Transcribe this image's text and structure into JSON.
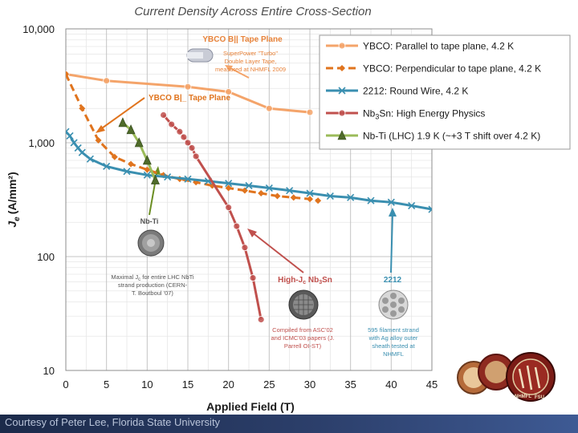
{
  "footer": {
    "credit": "Courtesy of Peter Lee, Florida State University"
  },
  "chart_data": {
    "type": "line",
    "title": "Current Density Across Entire Cross-Section",
    "xlabel": "Applied Field (T)",
    "ylabel_main": "J",
    "ylabel_sub": "e",
    "ylabel_units": "(A/mm²)",
    "xlim": [
      0,
      45
    ],
    "ylim": [
      10,
      10000
    ],
    "yscale": "log",
    "x_ticks": [
      "0",
      "5",
      "10",
      "15",
      "20",
      "25",
      "30",
      "35",
      "40",
      "45"
    ],
    "y_ticks": [
      "10",
      "100",
      "1,000",
      "10,000"
    ],
    "grid": true,
    "legend_position": "top-right",
    "series": [
      {
        "name": "YBCO: Parallel to tape plane, 4.2 K",
        "color": "#f4a46a",
        "marker": "circle",
        "dash": "solid",
        "x": [
          0,
          5,
          15,
          20,
          25,
          30
        ],
        "y": [
          4000,
          3500,
          3100,
          2800,
          2000,
          1850
        ]
      },
      {
        "name": "YBCO: Perpendicular to tape plane, 4.2 K",
        "color": "#e0741e",
        "marker": "diamond",
        "dash": "dash",
        "x": [
          0,
          2,
          4,
          6,
          8,
          10,
          12,
          14,
          16,
          18,
          20,
          22,
          24,
          26,
          28,
          30,
          31
        ],
        "y": [
          4000,
          2000,
          1050,
          750,
          650,
          580,
          520,
          480,
          450,
          420,
          400,
          380,
          360,
          340,
          330,
          320,
          310
        ]
      },
      {
        "name": "2212: Round Wire, 4.2 K",
        "color": "#3a8fb0",
        "marker": "x",
        "dash": "solid",
        "x": [
          0,
          0.5,
          1,
          1.5,
          2,
          3,
          5,
          7.5,
          10,
          12.5,
          15,
          17.5,
          20,
          22.5,
          25,
          27.5,
          30,
          32.5,
          35,
          37.5,
          40,
          42.5,
          45
        ],
        "y": [
          1250,
          1150,
          1000,
          900,
          820,
          720,
          620,
          560,
          520,
          500,
          480,
          460,
          440,
          420,
          400,
          380,
          360,
          340,
          330,
          310,
          300,
          280,
          260
        ]
      },
      {
        "name": "Nb3Sn: High Energy Physics",
        "color": "#c0504d",
        "marker": "circle",
        "dash": "solid",
        "x": [
          12,
          13,
          14,
          14.5,
          15,
          15.5,
          16,
          20,
          21,
          22,
          23,
          24
        ],
        "y": [
          1750,
          1450,
          1250,
          1120,
          1000,
          900,
          760,
          270,
          185,
          120,
          65,
          28
        ]
      },
      {
        "name": "Nb-Ti (LHC) 1.9 K (~+3 T shift over 4.2 K)",
        "color": "#9bbb59",
        "marker": "triangle",
        "dash": "solid",
        "x": [
          7,
          8,
          9,
          10,
          11
        ],
        "y": [
          1500,
          1300,
          1000,
          700,
          470
        ]
      }
    ],
    "annotations": {
      "ybco_par_head": "YBCO B|| Tape Plane",
      "ybco_par_note": [
        "SuperPower \"Turbo\"",
        "Double Layer Tape,",
        "measured at NHMFL 2009"
      ],
      "ybco_perp_head": "YBCO B|_ Tape Plane",
      "nbti_label": "Nb-Ti",
      "nbti_note": [
        "Maximal J",
        "for entire LHC NbTi",
        "strand production (CERN-",
        "T. Boutboul '07)"
      ],
      "nbti_note_sub": "c",
      "nb3sn_label": "High-J",
      "nb3sn_label_sub": "c",
      "nb3sn_label_2": " Nb",
      "nb3sn_label_sub2": "3",
      "nb3sn_label_3": "Sn",
      "nb3sn_note": [
        "Compiled from ASC'02",
        "and ICMC'03 papers (J.",
        "Parrell OI-ST)"
      ],
      "bscco_label": "2212",
      "bscco_note": [
        "595 filament strand",
        "with Ag alloy outer",
        "sheath tested at",
        "NHMFL"
      ],
      "logo_text": [
        "NHMFL",
        "FSU"
      ]
    }
  }
}
